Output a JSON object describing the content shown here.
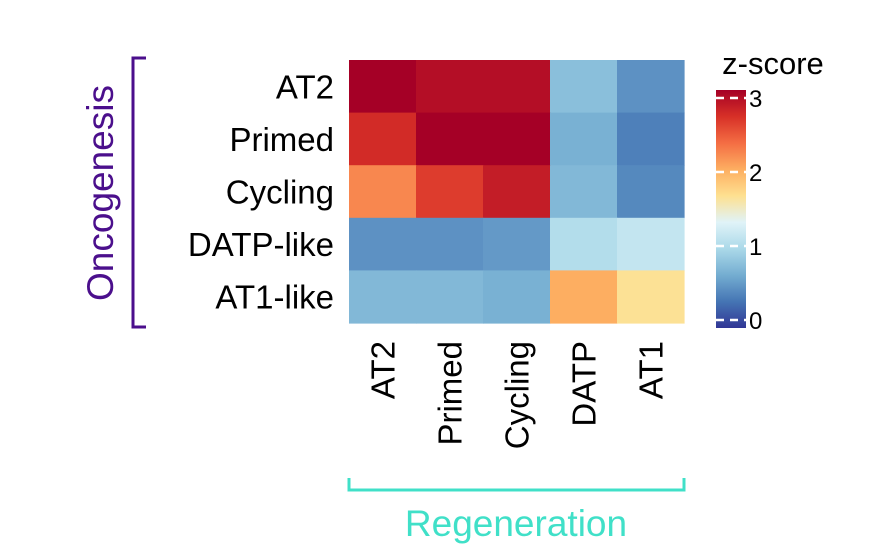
{
  "chart_data": {
    "type": "heatmap",
    "rows": [
      "AT2",
      "Primed",
      "Cycling",
      "DATP-like",
      "AT1-like"
    ],
    "columns": [
      "AT2",
      "Primed",
      "Cycling",
      "DATP",
      "AT1"
    ],
    "values": [
      [
        3.0,
        2.9,
        2.9,
        0.8,
        0.5
      ],
      [
        2.7,
        3.0,
        3.0,
        0.7,
        0.4
      ],
      [
        2.2,
        2.6,
        2.8,
        0.75,
        0.45
      ],
      [
        0.5,
        0.5,
        0.55,
        1.05,
        1.15
      ],
      [
        0.75,
        0.75,
        0.7,
        2.0,
        1.65
      ]
    ],
    "legend_title": "z-score",
    "legend_ticks": [
      "0",
      "1",
      "2",
      "3"
    ],
    "legend_tick_values": [
      0,
      1,
      2,
      3
    ],
    "value_range": [
      0,
      3
    ],
    "color_scale": [
      "#313695",
      "#4575b4",
      "#74add1",
      "#abd9e9",
      "#e0f3f8",
      "#fee090",
      "#fdae61",
      "#f46d43",
      "#d73027",
      "#a50026"
    ],
    "row_group_label": "Oncogenesis",
    "row_group_color": "#4b0f8c",
    "column_group_label": "Regeneration",
    "column_group_color": "#40e0c8"
  }
}
